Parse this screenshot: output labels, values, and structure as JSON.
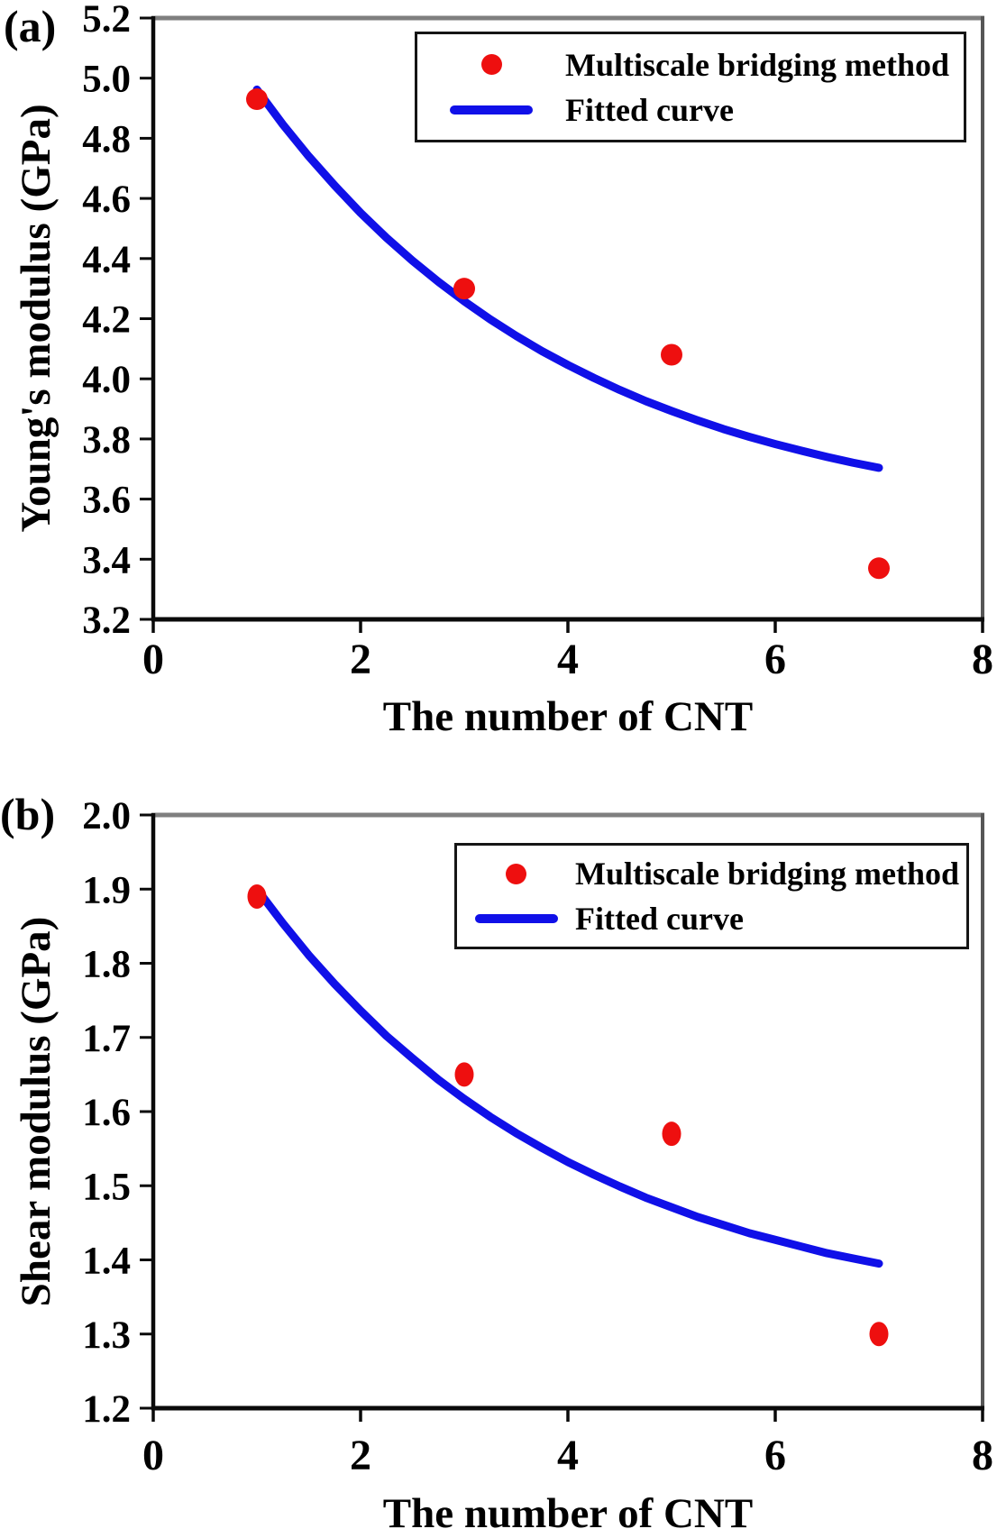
{
  "figure": {
    "panels": [
      {
        "label": "(a)"
      },
      {
        "label": "(b)"
      }
    ]
  },
  "colors": {
    "marker_red": "#ee0f0f",
    "curve_blue": "#1010e8",
    "axis_black": "#0a0a0a",
    "frame_top_gray": "#7f7f7f",
    "frame_right_gray": "#565656",
    "legend_border": "#151515",
    "text": "#000000",
    "background": "#ffffff"
  },
  "chart_data": [
    {
      "type": "scatter",
      "panel_label": "(a)",
      "title": "",
      "xlabel": "The number of CNT",
      "ylabel": "Young's modulus (GPa)",
      "xlim": [
        0,
        8
      ],
      "xtick_step": 2,
      "xtick_decimals": 0,
      "ylim": [
        3.2,
        5.2
      ],
      "ytick_step": 0.2,
      "ytick_decimals": 1,
      "grid": false,
      "legend_position": "top-right",
      "series": [
        {
          "name": "Multiscale bridging method",
          "type": "scatter",
          "color": "#ee0f0f",
          "x": [
            1,
            3,
            5,
            7
          ],
          "y": [
            4.93,
            4.3,
            4.08,
            3.37
          ]
        },
        {
          "name": "Fitted curve",
          "type": "line",
          "color": "#1010e8",
          "x": [
            1,
            1.25,
            1.5,
            1.75,
            2,
            2.25,
            2.5,
            2.75,
            3,
            3.25,
            3.5,
            3.75,
            4,
            4.25,
            4.5,
            4.75,
            5,
            5.25,
            5.5,
            5.75,
            6,
            6.25,
            6.5,
            6.75,
            7
          ],
          "y": [
            4.962,
            4.846,
            4.74,
            4.643,
            4.552,
            4.469,
            4.393,
            4.323,
            4.258,
            4.198,
            4.143,
            4.092,
            4.046,
            4.003,
            3.963,
            3.926,
            3.893,
            3.862,
            3.833,
            3.807,
            3.783,
            3.761,
            3.74,
            3.721,
            3.704
          ]
        }
      ]
    },
    {
      "type": "scatter",
      "panel_label": "(b)",
      "title": "",
      "xlabel": "The number of CNT",
      "ylabel": "Shear modulus (GPa)",
      "xlim": [
        0,
        8
      ],
      "xtick_step": 2,
      "xtick_decimals": 0,
      "ylim": [
        1.2,
        2.0
      ],
      "ytick_step": 0.1,
      "ytick_decimals": 1,
      "grid": false,
      "legend_position": "top-right",
      "series": [
        {
          "name": "Multiscale bridging method",
          "type": "scatter",
          "color": "#ee0f0f",
          "x": [
            1,
            3,
            5,
            7
          ],
          "y": [
            1.89,
            1.65,
            1.57,
            1.3
          ]
        },
        {
          "name": "Fitted curve",
          "type": "line",
          "color": "#1010e8",
          "x": [
            1,
            1.25,
            1.5,
            1.75,
            2,
            2.25,
            2.5,
            2.75,
            3,
            3.25,
            3.5,
            3.75,
            4,
            4.25,
            4.5,
            4.75,
            5,
            5.25,
            5.5,
            5.75,
            6,
            6.25,
            6.5,
            6.75,
            7
          ],
          "y": [
            1.9,
            1.854,
            1.811,
            1.772,
            1.736,
            1.702,
            1.672,
            1.643,
            1.617,
            1.593,
            1.571,
            1.551,
            1.532,
            1.515,
            1.499,
            1.484,
            1.471,
            1.458,
            1.447,
            1.436,
            1.427,
            1.418,
            1.409,
            1.402,
            1.395
          ]
        }
      ]
    }
  ]
}
